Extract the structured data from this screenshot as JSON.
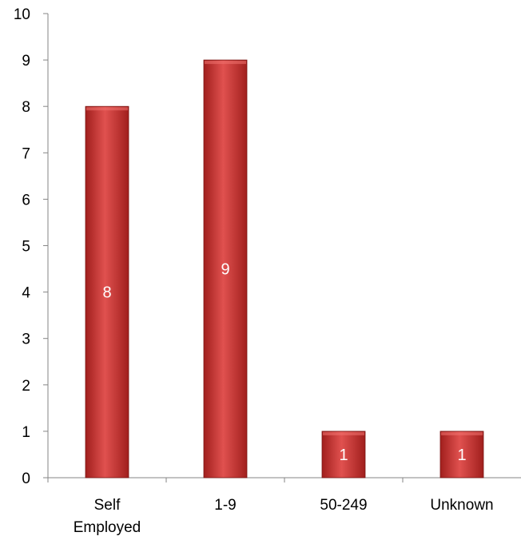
{
  "chart_data": {
    "type": "bar",
    "categories": [
      [
        "Self",
        "Employed"
      ],
      [
        "1-9"
      ],
      [
        "50-249"
      ],
      [
        "Unknown"
      ]
    ],
    "values": [
      8,
      9,
      1,
      1
    ],
    "data_labels": [
      "8",
      "9",
      "1",
      "1"
    ],
    "y_ticks": [
      "0",
      "1",
      "2",
      "3",
      "4",
      "5",
      "6",
      "7",
      "8",
      "9",
      "10"
    ],
    "ylim": [
      0,
      10
    ],
    "grid": false,
    "legend": "none",
    "colors": {
      "bar_top": "#e0514f",
      "bar_mid": "#c8302e",
      "bar_bottom": "#a11f1d",
      "bar_edge": "#7a1412",
      "axis": "#868686",
      "label": "#000000",
      "data_label": "#ffffff"
    }
  }
}
